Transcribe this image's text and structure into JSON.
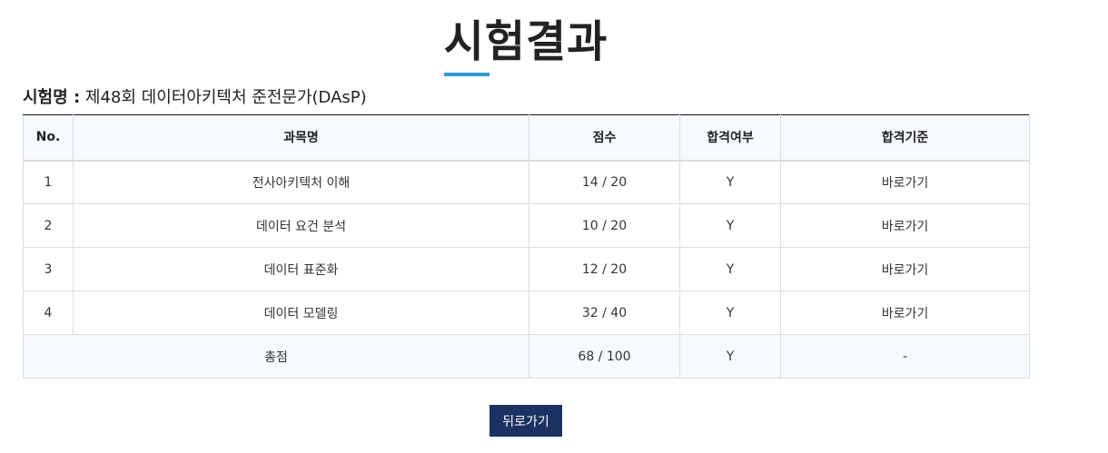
{
  "page": {
    "title": "시험결과",
    "accent_color": "#2e9ad8"
  },
  "exam": {
    "label": "시험명 :",
    "name": "제48회 데이터아키텍처 준전문가(DAsP)"
  },
  "table": {
    "headers": [
      "No.",
      "과목명",
      "점수",
      "합격여부",
      "합격기준"
    ],
    "rows": [
      {
        "no": "1",
        "subject": "전사아키텍처 이해",
        "score": "14 / 20",
        "pass": "Y",
        "criteria": "바로가기"
      },
      {
        "no": "2",
        "subject": "데이터 요건 분석",
        "score": "10 / 20",
        "pass": "Y",
        "criteria": "바로가기"
      },
      {
        "no": "3",
        "subject": "데이터 표준화",
        "score": "12 / 20",
        "pass": "Y",
        "criteria": "바로가기"
      },
      {
        "no": "4",
        "subject": "데이터 모델링",
        "score": "32 / 40",
        "pass": "Y",
        "criteria": "바로가기"
      }
    ],
    "total": {
      "label": "총점",
      "score": "68 / 100",
      "pass": "Y",
      "criteria": "-"
    }
  },
  "back_button": {
    "label": "뒤로가기",
    "color": "#1c3260"
  }
}
